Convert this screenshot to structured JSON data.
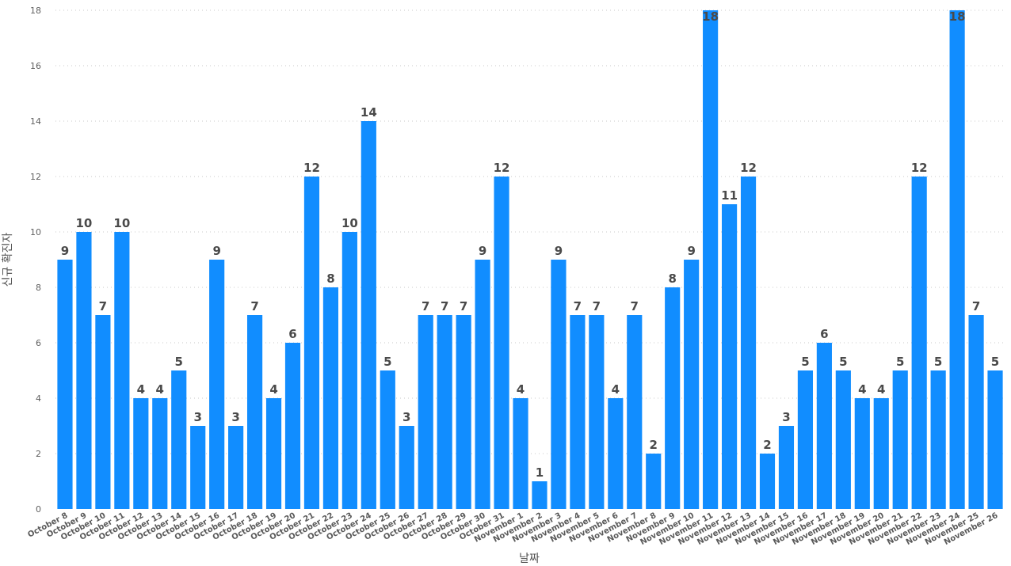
{
  "chart_data": {
    "type": "bar",
    "title": "",
    "xlabel": "날짜",
    "ylabel": "신규 확진자",
    "ylim": [
      0,
      18
    ],
    "yticks": [
      0,
      2,
      4,
      6,
      8,
      10,
      12,
      14,
      16,
      18
    ],
    "grid": "horizontal-dotted",
    "legend": "none",
    "bar_color": "#118DFF",
    "categories": [
      "October 8",
      "October 9",
      "October 10",
      "October 11",
      "October 12",
      "October 13",
      "October 14",
      "October 15",
      "October 16",
      "October 17",
      "October 18",
      "October 19",
      "October 20",
      "October 21",
      "October 22",
      "October 23",
      "October 24",
      "October 25",
      "October 26",
      "October 27",
      "October 28",
      "October 29",
      "October 30",
      "October 31",
      "November 1",
      "November 2",
      "November 3",
      "November 4",
      "November 5",
      "November 6",
      "November 7",
      "November 8",
      "November 9",
      "November 10",
      "November 11",
      "November 12",
      "November 13",
      "November 14",
      "November 15",
      "November 16",
      "November 17",
      "November 18",
      "November 19",
      "November 20",
      "November 21",
      "November 22",
      "November 23",
      "November 24",
      "November 25",
      "November 26"
    ],
    "values": [
      9,
      10,
      7,
      10,
      4,
      4,
      5,
      3,
      9,
      3,
      7,
      4,
      6,
      12,
      8,
      10,
      14,
      5,
      3,
      7,
      7,
      7,
      9,
      12,
      4,
      1,
      9,
      7,
      7,
      4,
      7,
      2,
      8,
      9,
      18,
      11,
      12,
      2,
      3,
      5,
      6,
      5,
      4,
      4,
      5,
      12,
      5,
      18,
      7,
      5
    ]
  }
}
